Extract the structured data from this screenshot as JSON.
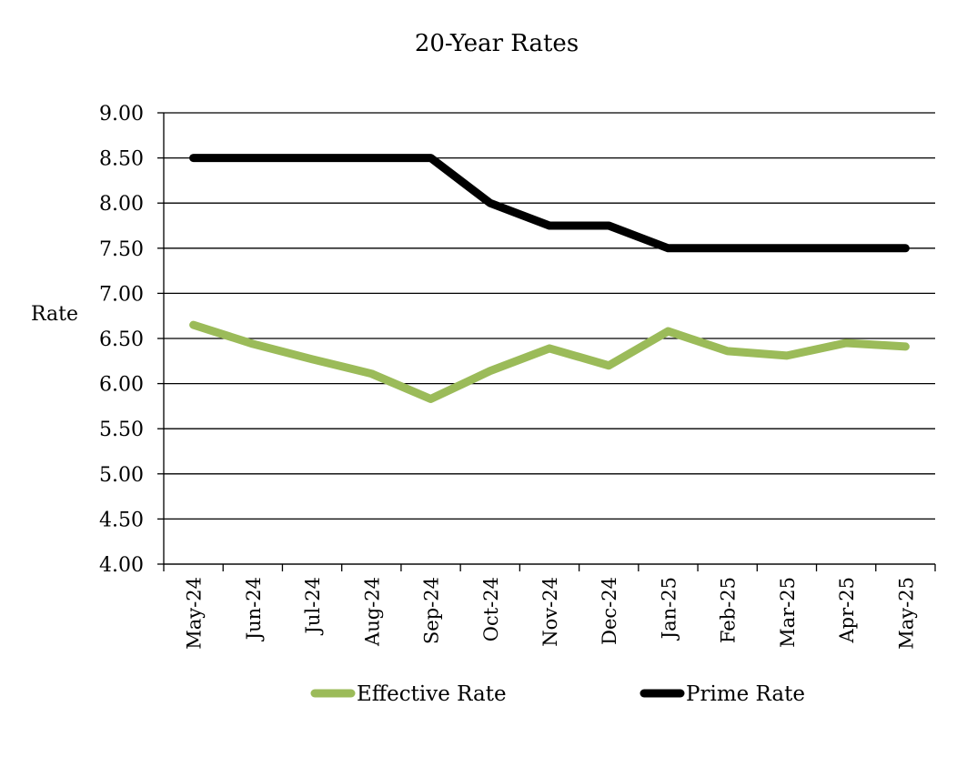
{
  "chart_data": {
    "type": "line",
    "title": "20-Year Rates",
    "ylabel": "Rate",
    "xlabel": "",
    "ylim": [
      4.0,
      9.0
    ],
    "y_ticks": [
      "4.00",
      "4.50",
      "5.00",
      "5.50",
      "6.00",
      "6.50",
      "7.00",
      "7.50",
      "8.00",
      "8.50",
      "9.00"
    ],
    "categories": [
      "May-24",
      "Jun-24",
      "Jul-24",
      "Aug-24",
      "Sep-24",
      "Oct-24",
      "Nov-24",
      "Dec-24",
      "Jan-25",
      "Feb-25",
      "Mar-25",
      "Apr-25",
      "May-25"
    ],
    "grid": "horizontal",
    "legend_position": "bottom",
    "series": [
      {
        "name": "Effective Rate",
        "color": "#9bbb59",
        "values": [
          6.65,
          6.44,
          6.27,
          6.11,
          5.83,
          6.14,
          6.39,
          6.2,
          6.58,
          6.36,
          6.31,
          6.45,
          6.41
        ]
      },
      {
        "name": "Prime Rate",
        "color": "#000000",
        "values": [
          8.5,
          8.5,
          8.5,
          8.5,
          8.5,
          8.0,
          7.75,
          7.75,
          7.5,
          7.5,
          7.5,
          7.5,
          7.5
        ]
      }
    ]
  }
}
